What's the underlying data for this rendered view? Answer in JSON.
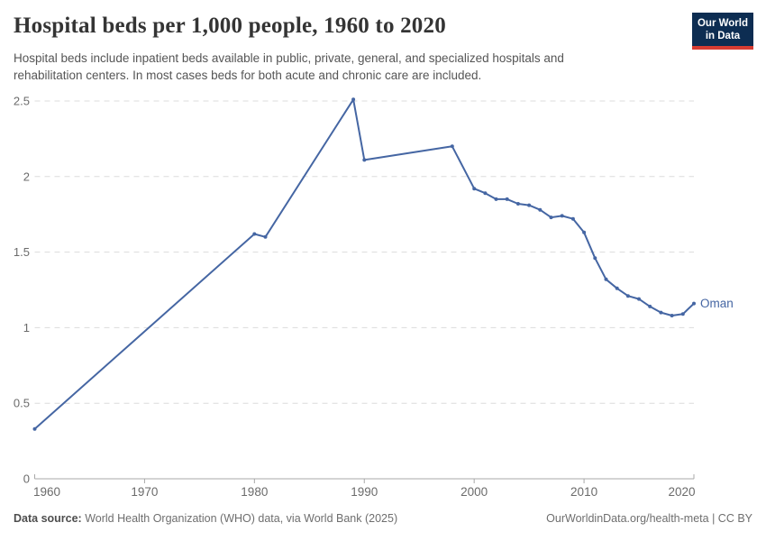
{
  "header": {
    "title": "Hospital beds per 1,000 people, 1960 to 2020",
    "subtitle_lines": [
      "Hospital beds include inpatient beds available in public, private, general, and specialized hospitals and",
      "rehabilitation centers. In most cases beds for both acute and chronic care are included."
    ],
    "logo": {
      "line1": "Our World",
      "line2": "in Data",
      "bg_color": "#0d2d52",
      "stripe_color": "#d73c32"
    }
  },
  "chart_data": {
    "type": "line",
    "title": "Hospital beds per 1,000 people, 1960 to 2020",
    "xlabel": "",
    "ylabel": "",
    "xlim": [
      1960,
      2020
    ],
    "ylim": [
      0,
      2.5
    ],
    "x_ticks": [
      1960,
      1970,
      1980,
      1990,
      2000,
      2010,
      2020
    ],
    "y_ticks": [
      0,
      0.5,
      1,
      1.5,
      2,
      2.5
    ],
    "grid": "horizontal-dashed",
    "legend": "end-of-line-label",
    "x": [
      1960,
      1980,
      1981,
      1989,
      1990,
      1998,
      2000,
      2001,
      2002,
      2003,
      2004,
      2005,
      2006,
      2007,
      2008,
      2009,
      2010,
      2011,
      2012,
      2013,
      2014,
      2015,
      2016,
      2017,
      2018,
      2019,
      2020
    ],
    "series": [
      {
        "name": "Oman",
        "color": "#4566a3",
        "values": [
          0.33,
          1.62,
          1.6,
          2.51,
          2.11,
          2.2,
          1.92,
          1.89,
          1.85,
          1.85,
          1.82,
          1.81,
          1.78,
          1.73,
          1.74,
          1.72,
          1.63,
          1.46,
          1.32,
          1.26,
          1.21,
          1.19,
          1.14,
          1.1,
          1.08,
          1.09,
          1.16
        ]
      }
    ]
  },
  "footer": {
    "source_label": "Data source:",
    "source_text": " World Health Organization (WHO) data, via World Bank (2025)",
    "site_link": "OurWorldinData.org/health-meta",
    "license_suffix": " | CC BY"
  }
}
